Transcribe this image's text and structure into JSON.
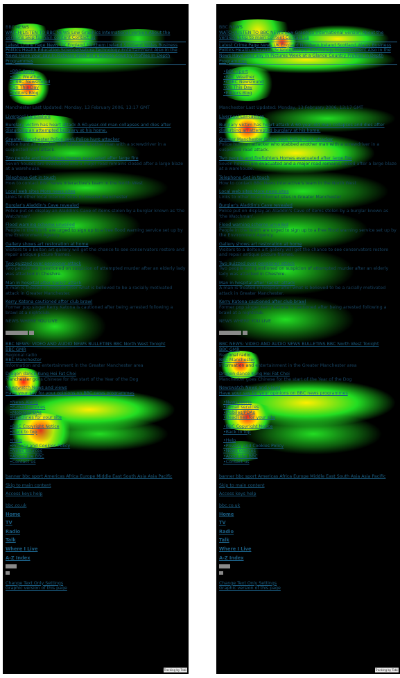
{
  "header": {
    "label": "BBC NEWS",
    "skip": "WATCH/LISTEN TO BBC NEWS  Low Graphics  International version  About the versions  Skip to main content  Contact us",
    "latest": "Latest Crime Page News UK  England  Northern Ireland  Scotland  Wales  Business  Politics  Health  Education  Science/Nature  Technology  Entertainment  Also in the News  Have your say  In Pictures  Week at a Glance  Country Profiles  In Depth  Programmes"
  },
  "sidebar_links": [
    "BBC Sport",
    "BBC Weather",
    "CBBC Newsround",
    "On This Day",
    "Editors Blog"
  ],
  "news": {
    "region_updated": "Manchester  Last Updated: Monday, 13 February 2006, 13:17 GMT",
    "section": "Liverpool  Lancashire",
    "stories": [
      {
        "title": "Burglary victim has heart attack  A 60-year-old man collapses and dies after disturbing an attempted burglary at his home.",
        "body": ""
      },
      {
        "title": "Greater Manchester Police seek Police hunt attacker",
        "body": "Police hunt an attacker who stabbed another man with a screwdriver in a suspected road attack."
      },
      {
        "title": "Two people and firefighters  Homes evacuated after large fire",
        "body": "Seven houses are evacuated and a major road remains closed after a large blaze at a warehouse."
      },
      {
        "title": "Telephone  Get in touch",
        "body": "How to contact BBC News Interactive's team in the North West"
      },
      {
        "title": "Local web sites  More news sites",
        "body": "Links to other local Internet sites in Greater Manchester"
      },
      {
        "title": "Burglar's Aladdin's Cave revealed",
        "body": "Police put on display an Aladdin's Cave of items stolen by a burglar known as 'the Watchman'."
      },
      {
        "title": "Flood warning scheme unveiled",
        "body": "People in the North are urged to sign up to a free flood warning service set up by the Environment Agency."
      },
      {
        "title": "Gallery shows art restoration at home",
        "body": "Visitors to a Bolton art gallery will get the chance to see conservators restore and repair antique picture frames."
      },
      {
        "title": "Two quizzed over pensioner attack",
        "body": "Two people are questioned on suspicion of attempted murder after an elderly lady was attacked in Cheshire."
      },
      {
        "title": "Man in hospital after 'racist' attack",
        "body": "A man is treated in hospital after what is believed to be a racially motivated attack in Greater Manchester."
      },
      {
        "title": "Kerry Katona cautioned after club brawl",
        "body": "Former pop singer Kerry Katona is cautioned after being arrested following a brawl at a nightclub."
      }
    ]
  },
  "where_i_live": {
    "label": "NEWS WHERE YOU LIVE",
    "button": "Go"
  },
  "bulletins": {
    "title": "BBC NEWS: VIDEO AND AUDIO NEWS BULLETINS  BBC North West Tonight",
    "sub": "BBC GMR",
    "extra": "Regional radio",
    "manchester": "BBC Manchester",
    "manchester_desc": "Information and entertainment in the Greater Manchester area"
  },
  "dragon": {
    "title": "Dragon dance  Kung Hei Fat Choi",
    "body": "Manchester goes Chinese for the start of the Year of the Dog"
  },
  "newswatch": {
    "title": "Newswatch  News and views",
    "body": "Have your say for your opinions on BBC news programmes"
  },
  "services": [
    "News Alerts",
    "E-mail services",
    "Mobiles/PDAs",
    "Headlines for your site"
  ],
  "legal": [
    "BBC Copyright Notice",
    "Back to top"
  ],
  "help_links": [
    "Help",
    "Privacy and Cookies Policy",
    "News sources",
    "About the BBC",
    "Contact us"
  ],
  "bottom_nav": "banner  bbc sport  Americas  Africa  Europe  Middle East  South Asia  Asia Pacific",
  "skip_content": "Skip to main content",
  "access_keys": "Access keys help",
  "site": "bbc.co.uk",
  "main_nav": [
    "Home",
    "TV",
    "Radio",
    "Talk",
    "Where I Live",
    "A-Z Index"
  ],
  "settings": "Change Text Only Settings",
  "graphic_version": "Graphic version of this page",
  "footer_badge": "Tracking by Tobii",
  "heat_colors": {
    "hot": "#ff1a1a",
    "warm": "#ffee00",
    "cool": "#22dd22"
  }
}
